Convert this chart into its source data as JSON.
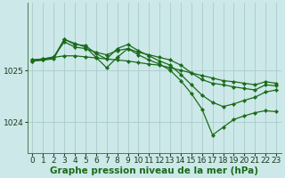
{
  "background_color": "#cce8e8",
  "grid_color": "#aacccc",
  "line_color": "#1a6b1a",
  "marker_color": "#1a6b1a",
  "xlabel": "Graphe pression niveau de la mer (hPa)",
  "xlabel_fontsize": 7.5,
  "tick_fontsize": 6.5,
  "yticks": [
    1024,
    1025
  ],
  "ylim": [
    1023.4,
    1026.3
  ],
  "xlim": [
    -0.5,
    23.5
  ],
  "xticks": [
    0,
    1,
    2,
    3,
    4,
    5,
    6,
    7,
    8,
    9,
    10,
    11,
    12,
    13,
    14,
    15,
    16,
    17,
    18,
    19,
    20,
    21,
    22,
    23
  ],
  "series": [
    {
      "x": [
        0,
        1,
        2,
        3,
        4,
        5,
        6,
        7,
        8,
        9,
        10,
        11,
        12,
        13,
        14,
        15,
        16,
        17,
        18,
        19,
        20,
        21,
        22,
        23
      ],
      "y": [
        1025.2,
        1025.22,
        1025.25,
        1025.28,
        1025.28,
        1025.26,
        1025.24,
        1025.22,
        1025.2,
        1025.18,
        1025.15,
        1025.12,
        1025.1,
        1025.05,
        1025.0,
        1024.95,
        1024.9,
        1024.85,
        1024.8,
        1024.78,
        1024.75,
        1024.72,
        1024.78,
        1024.75
      ]
    },
    {
      "x": [
        0,
        1,
        2,
        3,
        4,
        5,
        6,
        7,
        8,
        9,
        10,
        11,
        12,
        13,
        14,
        15,
        16,
        17,
        18,
        19,
        20,
        21,
        22,
        23
      ],
      "y": [
        1025.2,
        1025.22,
        1025.26,
        1025.55,
        1025.45,
        1025.42,
        1025.35,
        1025.3,
        1025.38,
        1025.42,
        1025.35,
        1025.3,
        1025.25,
        1025.2,
        1025.1,
        1024.95,
        1024.82,
        1024.75,
        1024.72,
        1024.68,
        1024.65,
        1024.62,
        1024.72,
        1024.7
      ]
    },
    {
      "x": [
        0,
        1,
        2,
        3,
        4,
        5,
        6,
        7,
        8,
        9,
        10,
        11,
        12,
        13,
        14,
        15,
        16,
        17,
        18,
        19,
        20,
        21,
        22,
        23
      ],
      "y": [
        1025.18,
        1025.2,
        1025.25,
        1025.6,
        1025.5,
        1025.48,
        1025.32,
        1025.22,
        1025.42,
        1025.5,
        1025.38,
        1025.28,
        1025.18,
        1025.1,
        1024.92,
        1024.72,
        1024.52,
        1024.38,
        1024.3,
        1024.35,
        1024.42,
        1024.48,
        1024.58,
        1024.62
      ]
    },
    {
      "x": [
        0,
        1,
        2,
        3,
        4,
        5,
        6,
        7,
        8,
        9,
        10,
        11,
        12,
        13,
        14,
        15,
        16,
        17,
        18,
        19,
        20,
        21,
        22,
        23
      ],
      "y": [
        1025.18,
        1025.2,
        1025.22,
        1025.6,
        1025.52,
        1025.45,
        1025.25,
        1025.05,
        1025.25,
        1025.42,
        1025.3,
        1025.2,
        1025.12,
        1025.0,
        1024.8,
        1024.55,
        1024.25,
        1023.75,
        1023.9,
        1024.05,
        1024.12,
        1024.18,
        1024.22,
        1024.2
      ]
    }
  ]
}
